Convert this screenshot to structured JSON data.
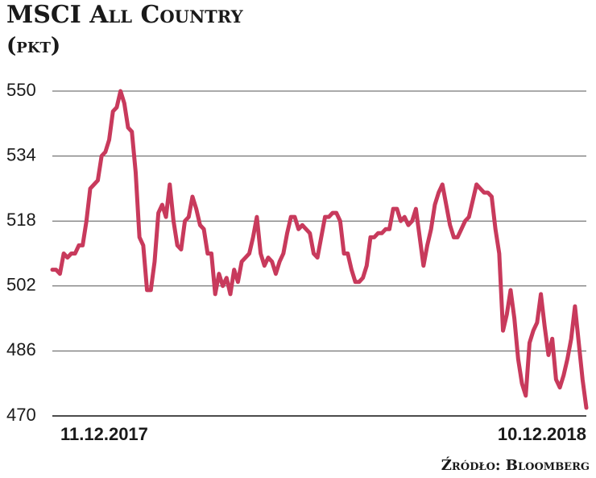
{
  "chart_data": {
    "type": "line",
    "title": "MSCI All Country",
    "subtitle": "(pkt)",
    "source": "Źródło: Bloomberg",
    "categories": [
      "11.12.2017",
      null,
      null,
      null,
      null,
      null,
      null,
      null,
      null,
      null,
      null,
      null,
      null,
      null,
      null,
      null,
      null,
      null,
      null,
      null,
      null,
      null,
      null,
      null,
      null,
      null,
      null,
      null,
      null,
      null,
      null,
      null,
      null,
      null,
      null,
      null,
      null,
      null,
      null,
      null,
      null,
      null,
      null,
      null,
      null,
      null,
      null,
      null,
      null,
      null,
      null,
      null,
      null,
      null,
      null,
      null,
      null,
      null,
      null,
      null,
      null,
      null,
      null,
      null,
      null,
      null,
      null,
      null,
      null,
      null,
      null,
      null,
      null,
      null,
      null,
      null,
      null,
      null,
      null,
      null,
      null,
      null,
      null,
      null,
      null,
      null,
      null,
      null,
      null,
      null,
      null,
      null,
      null,
      null,
      null,
      null,
      null,
      null,
      null,
      null,
      null,
      null,
      null,
      null,
      null,
      null,
      null,
      null,
      null,
      null,
      null,
      null,
      null,
      null,
      null,
      null,
      null,
      null,
      null,
      null,
      null,
      null,
      null,
      null,
      null,
      null,
      null,
      null,
      null,
      null,
      null,
      null,
      null,
      null,
      null,
      null,
      null,
      null,
      null,
      null,
      null,
      "10.12.2018"
    ],
    "series": [
      {
        "color": "#c83a5c",
        "values": [
          506,
          506,
          505,
          510,
          509,
          510,
          510,
          512,
          512,
          518,
          526,
          527,
          528,
          534,
          535,
          538,
          545,
          546,
          550,
          547,
          541,
          540,
          530,
          514,
          512,
          501,
          501,
          508,
          520,
          522,
          519,
          527,
          518,
          512,
          511,
          518,
          519,
          524,
          521,
          517,
          516,
          510,
          510,
          500,
          505,
          502,
          504,
          500,
          506,
          503,
          508,
          509,
          510,
          514,
          519,
          510,
          507,
          509,
          508,
          505,
          508,
          510,
          515,
          519,
          519,
          516,
          517,
          516,
          515,
          510,
          509,
          514,
          519,
          519,
          520,
          520,
          518,
          510,
          510,
          506,
          503,
          503,
          504,
          507,
          514,
          514,
          515,
          515,
          516,
          516,
          521,
          521,
          518,
          519,
          517,
          518,
          521,
          514,
          507,
          512,
          516,
          522,
          525,
          527,
          522,
          517,
          514,
          514,
          516,
          518,
          519,
          523,
          527,
          526,
          525,
          525,
          524,
          516,
          510,
          491,
          495,
          501,
          494,
          484,
          478,
          475,
          488,
          491,
          493,
          500,
          492,
          485,
          489,
          479,
          477,
          480,
          484,
          489,
          497,
          488,
          479,
          472
        ]
      }
    ],
    "ylim": [
      470,
      550
    ],
    "yticks": [
      470,
      486,
      502,
      518,
      534,
      550
    ],
    "grid": true
  }
}
